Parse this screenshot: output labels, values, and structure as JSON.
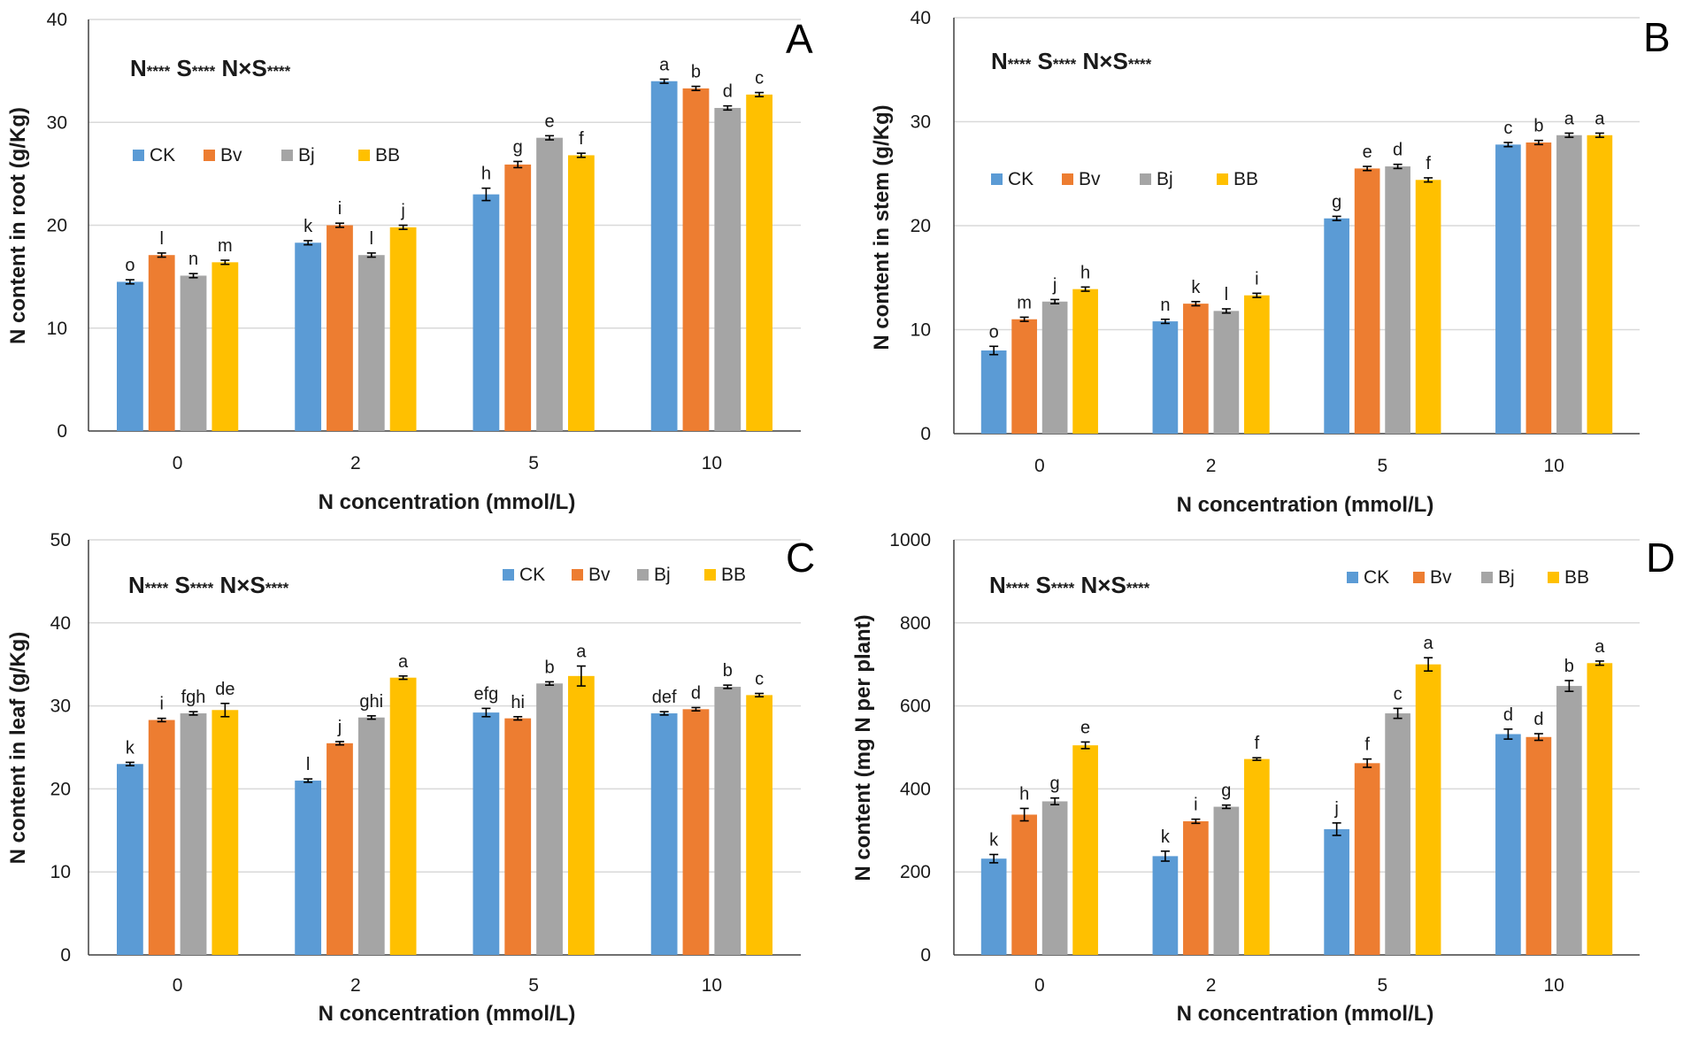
{
  "colors": {
    "CK": "#5b9bd5",
    "Bv": "#ed7d31",
    "Bj": "#a5a5a5",
    "BB": "#ffc000"
  },
  "chart_data": [
    {
      "type": "bar",
      "panel": "A",
      "categories": [
        "0",
        "2",
        "5",
        "10"
      ],
      "xlabel": "N concentration (mmol/L)",
      "ylabel": "N content in  root (g/Kg)",
      "ylim": [
        0,
        40
      ],
      "yticks": [
        "0",
        "10",
        "20",
        "30",
        "40"
      ],
      "stats": "N**** S**** N×S****",
      "legend_position": "upper-left",
      "series": [
        {
          "name": "CK",
          "values": [
            14.5,
            18.3,
            23.0,
            34.0
          ],
          "errors": [
            0.2,
            0.2,
            0.6,
            0.2
          ],
          "letters": [
            "o",
            "k",
            "h",
            "a"
          ]
        },
        {
          "name": "Bv",
          "values": [
            17.1,
            20.0,
            25.9,
            33.3
          ],
          "errors": [
            0.2,
            0.2,
            0.3,
            0.2
          ],
          "letters": [
            "l",
            "i",
            "g",
            "b"
          ]
        },
        {
          "name": "Bj",
          "values": [
            15.1,
            17.1,
            28.5,
            31.4
          ],
          "errors": [
            0.2,
            0.2,
            0.2,
            0.2
          ],
          "letters": [
            "n",
            "l",
            "e",
            "d"
          ]
        },
        {
          "name": "BB",
          "values": [
            16.4,
            19.8,
            26.8,
            32.7
          ],
          "errors": [
            0.2,
            0.2,
            0.2,
            0.2
          ],
          "letters": [
            "m",
            "j",
            "f",
            "c"
          ]
        }
      ]
    },
    {
      "type": "bar",
      "panel": "B",
      "categories": [
        "0",
        "2",
        "5",
        "10"
      ],
      "xlabel": "N concentration (mmol/L)",
      "ylabel": "N content in  stem (g/Kg)",
      "ylim": [
        0,
        40
      ],
      "yticks": [
        "0",
        "10",
        "20",
        "30",
        "40"
      ],
      "stats": "N**** S**** N×S****",
      "legend_position": "middle-left",
      "series": [
        {
          "name": "CK",
          "values": [
            8.0,
            10.8,
            20.7,
            27.8
          ],
          "errors": [
            0.4,
            0.2,
            0.2,
            0.2
          ],
          "letters": [
            "o",
            "n",
            "g",
            "c"
          ]
        },
        {
          "name": "Bv",
          "values": [
            11.0,
            12.5,
            25.5,
            28.0
          ],
          "errors": [
            0.2,
            0.2,
            0.2,
            0.2
          ],
          "letters": [
            "m",
            "k",
            "e",
            "b"
          ]
        },
        {
          "name": "Bj",
          "values": [
            12.7,
            11.8,
            25.7,
            28.7
          ],
          "errors": [
            0.2,
            0.2,
            0.2,
            0.2
          ],
          "letters": [
            "j",
            "l",
            "d",
            "a"
          ]
        },
        {
          "name": "BB",
          "values": [
            13.9,
            13.3,
            24.4,
            28.7
          ],
          "errors": [
            0.2,
            0.2,
            0.2,
            0.2
          ],
          "letters": [
            "h",
            "i",
            "f",
            "a"
          ]
        }
      ]
    },
    {
      "type": "bar",
      "panel": "C",
      "categories": [
        "0",
        "2",
        "5",
        "10"
      ],
      "xlabel": "N concentration (mmol/L)",
      "ylabel": "N content in  leaf (g/Kg)",
      "ylim": [
        0,
        50
      ],
      "yticks": [
        "0",
        "10",
        "20",
        "30",
        "40",
        "50"
      ],
      "stats": "N**** S**** N×S****",
      "legend_position": "top-right",
      "series": [
        {
          "name": "CK",
          "values": [
            23.0,
            21.0,
            29.2,
            29.1
          ],
          "errors": [
            0.2,
            0.2,
            0.5,
            0.2
          ],
          "letters": [
            "k",
            "l",
            "efg",
            "def"
          ]
        },
        {
          "name": "Bv",
          "values": [
            28.3,
            25.5,
            28.5,
            29.6
          ],
          "errors": [
            0.2,
            0.2,
            0.2,
            0.2
          ],
          "letters": [
            "i",
            "j",
            "hi",
            "d"
          ]
        },
        {
          "name": "Bj",
          "values": [
            29.1,
            28.6,
            32.7,
            32.3
          ],
          "errors": [
            0.2,
            0.2,
            0.2,
            0.2
          ],
          "letters": [
            "fgh",
            "ghi",
            "b",
            "b"
          ]
        },
        {
          "name": "BB",
          "values": [
            29.5,
            33.4,
            33.6,
            31.3
          ],
          "errors": [
            0.8,
            0.2,
            1.2,
            0.2
          ],
          "letters": [
            "de",
            "a",
            "a",
            "c"
          ]
        }
      ]
    },
    {
      "type": "bar",
      "panel": "D",
      "categories": [
        "0",
        "2",
        "5",
        "10"
      ],
      "xlabel": "N concentration (mmol/L)",
      "ylabel": "N content (mg N per plant)",
      "ylim": [
        0,
        1000
      ],
      "yticks": [
        "0",
        "200",
        "400",
        "600",
        "800",
        "1000"
      ],
      "stats": "N**** S**** N×S****",
      "legend_position": "top-right",
      "series": [
        {
          "name": "CK",
          "values": [
            232,
            238,
            303,
            532
          ],
          "errors": [
            10,
            12,
            15,
            12
          ],
          "letters": [
            "k",
            "k",
            "j",
            "d"
          ]
        },
        {
          "name": "Bv",
          "values": [
            338,
            322,
            462,
            525
          ],
          "errors": [
            15,
            5,
            10,
            8
          ],
          "letters": [
            "h",
            "i",
            "f",
            "d"
          ]
        },
        {
          "name": "Bj",
          "values": [
            370,
            357,
            582,
            648
          ],
          "errors": [
            8,
            4,
            12,
            13
          ],
          "letters": [
            "g",
            "g",
            "c",
            "b"
          ]
        },
        {
          "name": "BB",
          "values": [
            505,
            472,
            700,
            703
          ],
          "errors": [
            8,
            3,
            16,
            5
          ],
          "letters": [
            "e",
            "f",
            "a",
            "a"
          ]
        }
      ]
    }
  ]
}
